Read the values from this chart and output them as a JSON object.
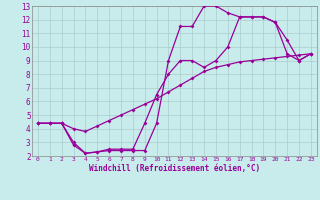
{
  "xlabel": "Windchill (Refroidissement éolien,°C)",
  "bg_color": "#c8ecec",
  "grid_color": "#aacccc",
  "line_color": "#990099",
  "xlim": [
    -0.5,
    23.5
  ],
  "ylim": [
    2,
    13
  ],
  "xticks": [
    0,
    1,
    2,
    3,
    4,
    5,
    6,
    7,
    8,
    9,
    10,
    11,
    12,
    13,
    14,
    15,
    16,
    17,
    18,
    19,
    20,
    21,
    22,
    23
  ],
  "yticks": [
    2,
    3,
    4,
    5,
    6,
    7,
    8,
    9,
    10,
    11,
    12,
    13
  ],
  "line1_x": [
    0,
    1,
    2,
    3,
    4,
    5,
    6,
    7,
    8,
    9,
    10,
    11,
    12,
    13,
    14,
    15,
    16,
    17,
    18,
    19,
    20,
    21,
    22,
    23
  ],
  "line1_y": [
    4.4,
    4.4,
    4.4,
    4.0,
    3.8,
    4.2,
    4.6,
    5.0,
    5.4,
    5.8,
    6.2,
    6.7,
    7.2,
    7.7,
    8.2,
    8.5,
    8.7,
    8.9,
    9.0,
    9.1,
    9.2,
    9.3,
    9.4,
    9.5
  ],
  "line2_x": [
    0,
    1,
    2,
    3,
    4,
    5,
    6,
    7,
    8,
    9,
    10,
    11,
    12,
    13,
    14,
    15,
    16,
    17,
    18,
    19,
    20,
    21,
    22,
    23
  ],
  "line2_y": [
    4.4,
    4.4,
    4.4,
    2.8,
    2.2,
    2.3,
    2.4,
    2.4,
    2.4,
    2.4,
    4.4,
    9.0,
    11.5,
    11.5,
    13.0,
    13.0,
    12.5,
    12.2,
    12.2,
    12.2,
    11.8,
    10.5,
    9.0,
    9.5
  ],
  "line3_x": [
    0,
    1,
    2,
    3,
    4,
    5,
    6,
    7,
    8,
    9,
    10,
    11,
    12,
    13,
    14,
    15,
    16,
    17,
    18,
    19,
    20,
    21,
    22,
    23
  ],
  "line3_y": [
    4.4,
    4.4,
    4.4,
    3.0,
    2.2,
    2.3,
    2.5,
    2.5,
    2.5,
    4.4,
    6.5,
    8.0,
    9.0,
    9.0,
    8.5,
    9.0,
    10.0,
    12.2,
    12.2,
    12.2,
    11.8,
    9.5,
    9.0,
    9.5
  ]
}
